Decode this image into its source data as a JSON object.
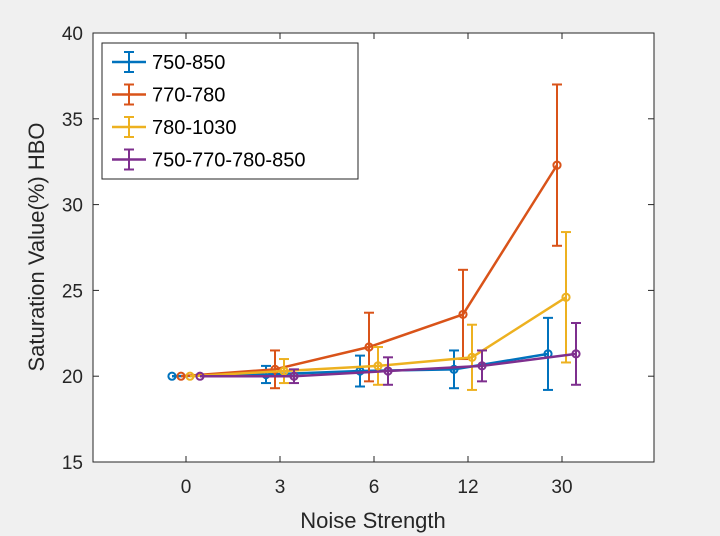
{
  "chart_data": {
    "type": "line",
    "xlabel": "Noise Strength",
    "ylabel": "Saturation Value(%) HBO",
    "categories": [
      "0",
      "3",
      "6",
      "12",
      "30"
    ],
    "ylim": [
      15,
      40
    ],
    "yticks": [
      15,
      20,
      25,
      30,
      35,
      40
    ],
    "grid": false,
    "legend_position": "top-left",
    "error_bars": true,
    "series": [
      {
        "name": "750-850",
        "color": "#0072BD",
        "values": [
          20.0,
          20.1,
          20.3,
          20.4,
          21.3
        ],
        "errors": [
          0.0,
          0.5,
          0.9,
          1.1,
          2.1
        ]
      },
      {
        "name": "770-780",
        "color": "#D95319",
        "values": [
          20.0,
          20.4,
          21.7,
          23.6,
          32.3
        ],
        "errors": [
          0.0,
          1.1,
          2.0,
          2.6,
          4.7
        ]
      },
      {
        "name": "780-1030",
        "color": "#EDB120",
        "values": [
          20.0,
          20.3,
          20.6,
          21.1,
          24.6
        ],
        "errors": [
          0.0,
          0.7,
          1.1,
          1.9,
          3.8
        ]
      },
      {
        "name": "750-770-780-850",
        "color": "#7E2F8E",
        "values": [
          20.0,
          20.0,
          20.3,
          20.6,
          21.3
        ],
        "errors": [
          0.0,
          0.4,
          0.8,
          0.9,
          1.8
        ]
      }
    ]
  }
}
